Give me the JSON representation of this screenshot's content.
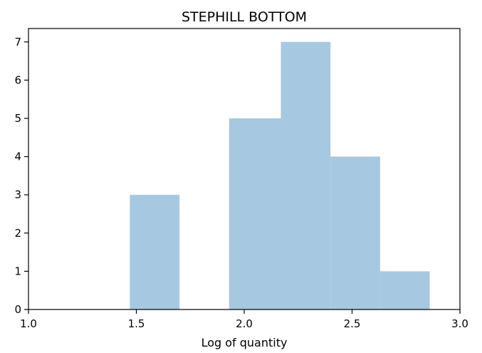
{
  "chart_data": {
    "type": "bar",
    "title": "STEPHILL BOTTOM",
    "xlabel": "Log of quantity",
    "ylabel": "",
    "xlim": [
      1.0,
      3.0
    ],
    "ylim": [
      0,
      7.35
    ],
    "grid": false,
    "bar_color": "#a6c8e0",
    "x_ticks": [
      1.0,
      1.5,
      2.0,
      2.5,
      3.0
    ],
    "x_tick_labels": [
      "1.0",
      "1.5",
      "2.0",
      "2.5",
      "3.0"
    ],
    "y_ticks": [
      0,
      1,
      2,
      3,
      4,
      5,
      6,
      7
    ],
    "y_tick_labels": [
      "0",
      "1",
      "2",
      "3",
      "4",
      "5",
      "6",
      "7"
    ],
    "bins": [
      {
        "x0": 1.47,
        "x1": 1.7,
        "count": 3
      },
      {
        "x0": 1.7,
        "x1": 1.93,
        "count": 0
      },
      {
        "x0": 1.93,
        "x1": 2.17,
        "count": 5
      },
      {
        "x0": 2.17,
        "x1": 2.4,
        "count": 7
      },
      {
        "x0": 2.4,
        "x1": 2.63,
        "count": 4
      },
      {
        "x0": 2.63,
        "x1": 2.86,
        "count": 1
      }
    ]
  }
}
